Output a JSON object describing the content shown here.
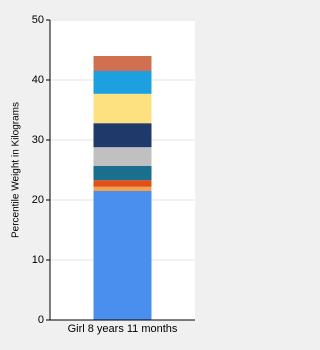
{
  "chart_data": {
    "type": "stacked_bar",
    "y_label": "Percentile Weight in Kilograms",
    "categories": [
      "Girl 8 years 11 months"
    ],
    "series": [
      {
        "color": "#4a8fee",
        "values": [
          21.5
        ]
      },
      {
        "color": "#f5a04a",
        "values": [
          0.7
        ]
      },
      {
        "color": "#e0501a",
        "values": [
          1.1
        ]
      },
      {
        "color": "#1a6e8e",
        "values": [
          2.4
        ]
      },
      {
        "color": "#c0c0c0",
        "values": [
          3.1
        ]
      },
      {
        "color": "#1f3a6a",
        "values": [
          4.0
        ]
      },
      {
        "color": "#fde080",
        "values": [
          4.9
        ]
      },
      {
        "color": "#1ea0e0",
        "values": [
          3.8
        ]
      },
      {
        "color": "#d07050",
        "values": [
          2.5
        ]
      }
    ],
    "ylim": [
      0,
      50
    ],
    "yticks": [
      0,
      10,
      20,
      30,
      40,
      50
    ],
    "grid": true
  }
}
